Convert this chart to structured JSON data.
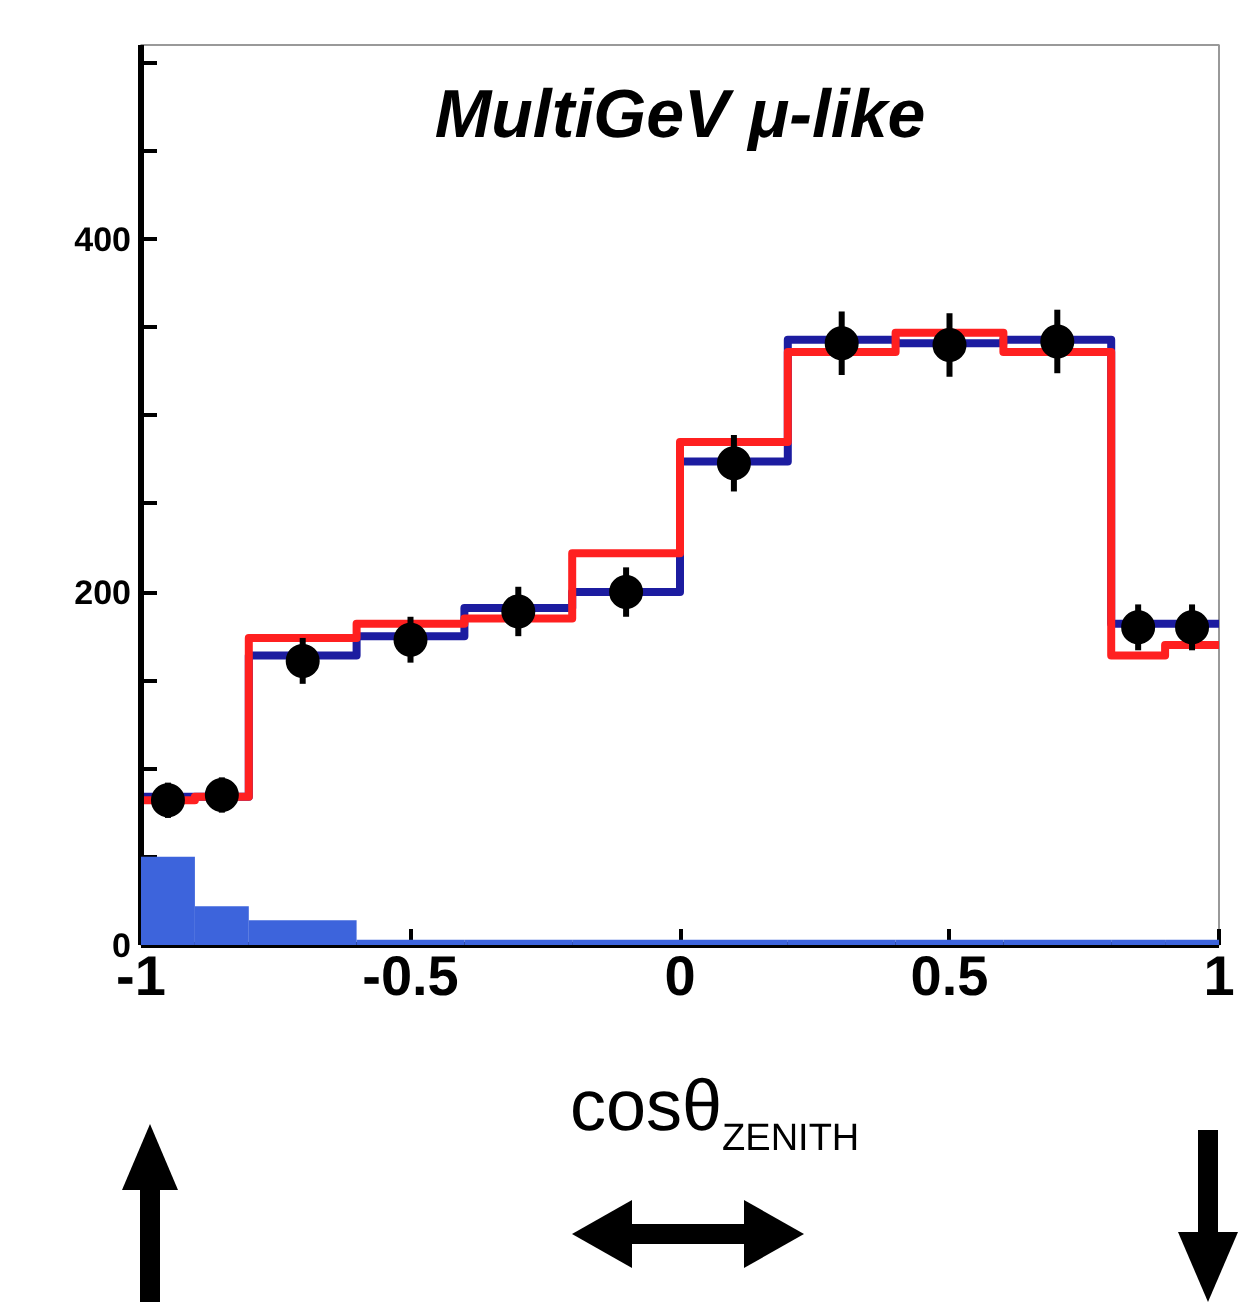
{
  "chart_data": {
    "type": "histogram",
    "title": "MultiGeV μ-like",
    "xlabel": "cosθ$_{ZENITH}$",
    "bins": [
      -1,
      -0.9,
      -0.8,
      -0.6,
      -0.4,
      -0.2,
      0,
      0.2,
      0.4,
      0.6,
      0.8,
      0.9,
      1
    ],
    "xlim": [
      -1,
      1
    ],
    "ylim": [
      0,
      510
    ],
    "xticks": [
      -1,
      -0.5,
      0,
      0.5,
      1
    ],
    "yticks": [
      0,
      {
        "value": 50,
        "label": null
      },
      {
        "value": 100,
        "label": null
      },
      {
        "value": 150,
        "label": null
      },
      200,
      {
        "value": 250,
        "label": null
      },
      {
        "value": 300,
        "label": null
      },
      {
        "value": 350,
        "label": null
      },
      400,
      {
        "value": 450,
        "label": null
      },
      {
        "value": 500,
        "label": null
      }
    ],
    "grid": false,
    "series": [
      {
        "color": "#3d64dc",
        "values": [
          50,
          22,
          14,
          3,
          3,
          3,
          3,
          3,
          3,
          3,
          3,
          3
        ]
      },
      {
        "type": "step",
        "color": "#1c1ca0",
        "x": [
          -1,
          -0.9,
          -0.8,
          -0.6,
          -0.4,
          -0.2,
          0,
          0.2,
          0.4,
          0.6,
          0.8,
          0.9,
          1
        ],
        "values": [
          84,
          84,
          164,
          175,
          191,
          200,
          274,
          343,
          341,
          343,
          182,
          182,
          182
        ]
      },
      {
        "type": "step",
        "color": "#ff2020",
        "x": [
          -1,
          -0.9,
          -0.8,
          -0.6,
          -0.4,
          -0.2,
          0,
          0.2,
          0.4,
          0.6,
          0.8,
          0.9,
          1
        ],
        "values": [
          82,
          84,
          174,
          182,
          185,
          222,
          285,
          336,
          347,
          336,
          164,
          170,
          170
        ]
      },
      {
        "type": "scatter",
        "color": "#000000",
        "marker": "circle",
        "x": [
          -0.95,
          -0.85,
          -0.7,
          -0.5,
          -0.3,
          -0.1,
          0.1,
          0.3,
          0.5,
          0.7,
          0.85,
          0.95
        ],
        "values": [
          82,
          85,
          161,
          173,
          189,
          200,
          273,
          341,
          340,
          342,
          180,
          180
        ],
        "errors": [
          10,
          10,
          13,
          13,
          14,
          14,
          16,
          18,
          18,
          18,
          13,
          13
        ]
      }
    ]
  }
}
